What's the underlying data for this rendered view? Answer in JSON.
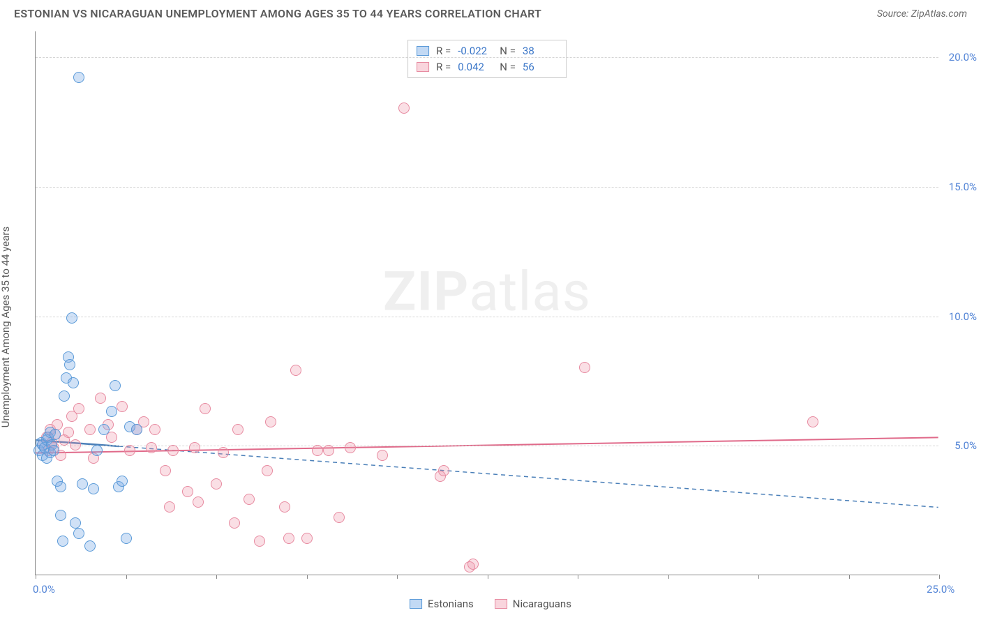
{
  "title": "ESTONIAN VS NICARAGUAN UNEMPLOYMENT AMONG AGES 35 TO 44 YEARS CORRELATION CHART",
  "source": "Source: ZipAtlas.com",
  "ylabel": "Unemployment Among Ages 35 to 44 years",
  "watermark_bold": "ZIP",
  "watermark_rest": "atlas",
  "chart": {
    "type": "scatter",
    "xlim": [
      0,
      25
    ],
    "ylim": [
      0,
      21
    ],
    "xticks": [
      0,
      2.5,
      5,
      7.5,
      10,
      12.5,
      15,
      17.5,
      20,
      22.5,
      25
    ],
    "xlabels": {
      "0": "0.0%",
      "25": "25.0%"
    },
    "ygrid": [
      5,
      10,
      15,
      20
    ],
    "ylabels": {
      "5": "5.0%",
      "10": "10.0%",
      "15": "15.0%",
      "20": "20.0%"
    },
    "background_color": "#ffffff",
    "grid_color": "#d5d5d5",
    "axis_color": "#888888",
    "tick_label_color": "#5284d6",
    "series_a": {
      "label": "Estonians",
      "color_fill": "rgba(120,170,230,0.35)",
      "color_stroke": "#5a9ad8",
      "R": "-0.022",
      "N": "38",
      "trend": {
        "y_at_x0": 5.2,
        "y_at_xmax": 2.6,
        "stroke": "#4a7fb8",
        "dash": true,
        "width": 1.5
      },
      "trend_solid_until_x": 2.3,
      "points": [
        [
          0.1,
          4.8
        ],
        [
          0.15,
          5.1
        ],
        [
          0.2,
          5.0
        ],
        [
          0.2,
          4.6
        ],
        [
          0.25,
          4.9
        ],
        [
          0.3,
          5.2
        ],
        [
          0.3,
          4.5
        ],
        [
          0.35,
          5.3
        ],
        [
          0.4,
          4.7
        ],
        [
          0.4,
          5.5
        ],
        [
          0.45,
          5.0
        ],
        [
          0.5,
          4.8
        ],
        [
          0.55,
          5.4
        ],
        [
          0.6,
          3.6
        ],
        [
          0.7,
          3.4
        ],
        [
          0.7,
          2.3
        ],
        [
          0.75,
          1.3
        ],
        [
          0.8,
          6.9
        ],
        [
          0.85,
          7.6
        ],
        [
          0.9,
          8.4
        ],
        [
          0.95,
          8.1
        ],
        [
          1.0,
          9.9
        ],
        [
          1.05,
          7.4
        ],
        [
          1.1,
          2.0
        ],
        [
          1.2,
          1.6
        ],
        [
          1.5,
          1.1
        ],
        [
          1.2,
          19.2
        ],
        [
          1.3,
          3.5
        ],
        [
          1.6,
          3.3
        ],
        [
          1.7,
          4.8
        ],
        [
          1.9,
          5.6
        ],
        [
          2.1,
          6.3
        ],
        [
          2.2,
          7.3
        ],
        [
          2.3,
          3.4
        ],
        [
          2.4,
          3.6
        ],
        [
          2.6,
          5.7
        ],
        [
          2.5,
          1.4
        ],
        [
          2.8,
          5.6
        ]
      ]
    },
    "series_b": {
      "label": "Nicaraguans",
      "color_fill": "rgba(240,150,170,0.30)",
      "color_stroke": "#e78aa0",
      "R": "0.042",
      "N": "56",
      "trend": {
        "y_at_x0": 4.7,
        "y_at_xmax": 5.3,
        "stroke": "#e06a8a",
        "dash": false,
        "width": 2
      },
      "points": [
        [
          0.2,
          5.0
        ],
        [
          0.3,
          5.3
        ],
        [
          0.35,
          4.8
        ],
        [
          0.4,
          5.6
        ],
        [
          0.45,
          5.1
        ],
        [
          0.5,
          4.9
        ],
        [
          0.55,
          5.4
        ],
        [
          0.6,
          5.8
        ],
        [
          0.7,
          4.6
        ],
        [
          0.8,
          5.2
        ],
        [
          0.9,
          5.5
        ],
        [
          1.0,
          6.1
        ],
        [
          1.1,
          5.0
        ],
        [
          1.2,
          6.4
        ],
        [
          1.5,
          5.6
        ],
        [
          1.6,
          4.5
        ],
        [
          1.8,
          6.8
        ],
        [
          2.0,
          5.8
        ],
        [
          2.1,
          5.3
        ],
        [
          2.4,
          6.5
        ],
        [
          2.6,
          4.8
        ],
        [
          2.8,
          5.6
        ],
        [
          3.0,
          5.9
        ],
        [
          3.2,
          4.9
        ],
        [
          3.3,
          5.6
        ],
        [
          3.6,
          4.0
        ],
        [
          3.7,
          2.6
        ],
        [
          3.8,
          4.8
        ],
        [
          4.2,
          3.2
        ],
        [
          4.4,
          4.9
        ],
        [
          4.5,
          2.8
        ],
        [
          4.7,
          6.4
        ],
        [
          5.0,
          3.5
        ],
        [
          5.2,
          4.7
        ],
        [
          5.5,
          2.0
        ],
        [
          5.6,
          5.6
        ],
        [
          5.9,
          2.9
        ],
        [
          6.2,
          1.3
        ],
        [
          6.4,
          4.0
        ],
        [
          6.5,
          5.9
        ],
        [
          6.9,
          2.6
        ],
        [
          7.0,
          1.4
        ],
        [
          7.2,
          7.9
        ],
        [
          7.5,
          1.4
        ],
        [
          7.8,
          4.8
        ],
        [
          8.1,
          4.8
        ],
        [
          8.4,
          2.2
        ],
        [
          8.7,
          4.9
        ],
        [
          9.6,
          4.6
        ],
        [
          10.2,
          18.0
        ],
        [
          11.2,
          3.8
        ],
        [
          11.3,
          4.0
        ],
        [
          12.0,
          0.3
        ],
        [
          12.1,
          0.4
        ],
        [
          15.2,
          8.0
        ],
        [
          21.5,
          5.9
        ]
      ]
    }
  },
  "legend_bottom": [
    "Estonians",
    "Nicaraguans"
  ]
}
